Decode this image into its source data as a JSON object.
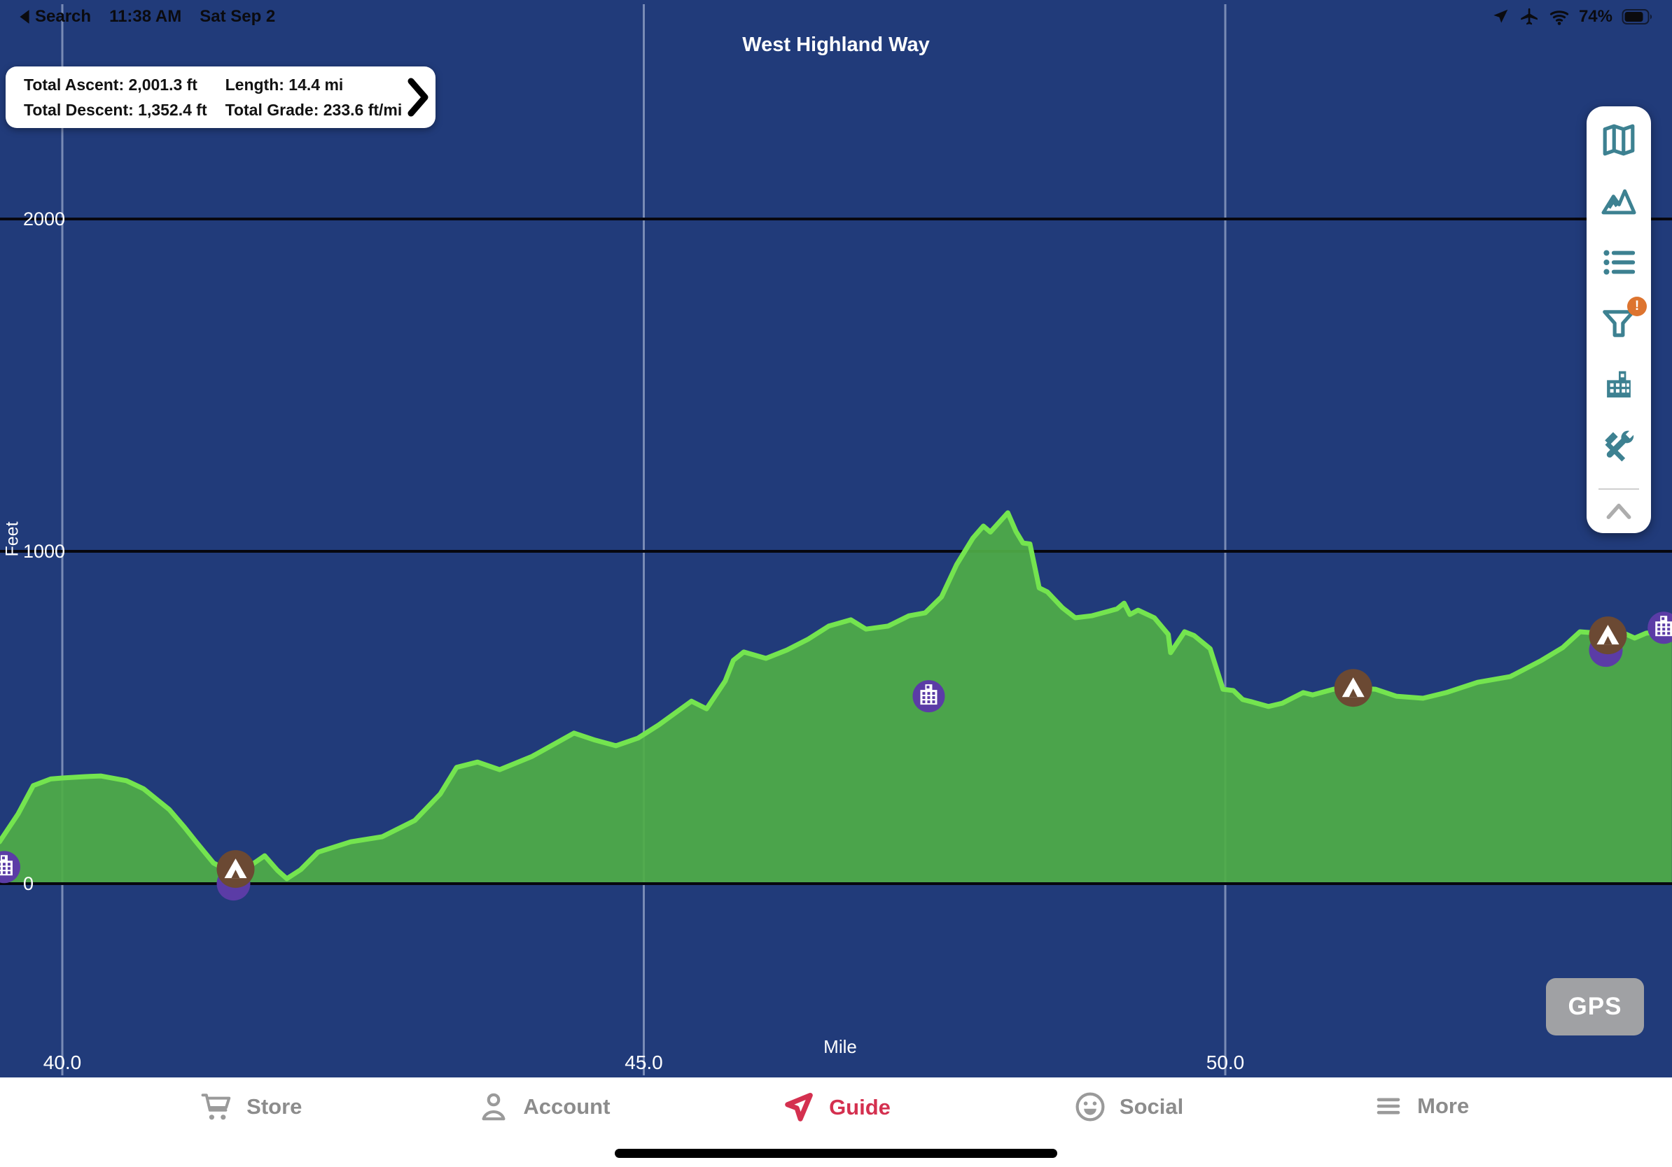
{
  "status_bar": {
    "back_label": "Search",
    "time": "11:38 AM",
    "date": "Sat Sep 2",
    "battery_percent": "74%"
  },
  "header": {
    "title": "West Highland Way"
  },
  "stats_box": {
    "total_ascent": "Total Ascent: 2,001.3 ft",
    "total_descent": "Total Descent: 1,352.4 ft",
    "length": "Length: 14.4 mi",
    "total_grade": "Total Grade: 233.6 ft/mi"
  },
  "toolbar": {
    "icons": [
      "map-icon",
      "elevation-profile-icon",
      "waypoint-list-icon",
      "filter-icon",
      "towns-icon",
      "tools-icon"
    ],
    "filter_badge": "!",
    "collapse_icon": "chevron-up-icon"
  },
  "gps_button": {
    "label": "GPS"
  },
  "tab_bar": {
    "tabs": [
      {
        "label": "Store",
        "icon": "cart-icon",
        "active": false
      },
      {
        "label": "Account",
        "icon": "person-icon",
        "active": false
      },
      {
        "label": "Guide",
        "icon": "farout-logo-icon",
        "active": true
      },
      {
        "label": "Social",
        "icon": "smiley-icon",
        "active": false
      },
      {
        "label": "More",
        "icon": "menu-icon",
        "active": false
      }
    ]
  },
  "chart_data": {
    "type": "area",
    "title": "West Highland Way",
    "xlabel": "Mile",
    "ylabel": "Feet",
    "xlim": [
      39.46,
      53.84
    ],
    "ylim_labeled": [
      0,
      2000
    ],
    "x_ticks": [
      40.0,
      45.0,
      50.0
    ],
    "x_tick_labels": [
      "40.0",
      "45.0",
      "50.0"
    ],
    "y_ticks": [
      0,
      1000,
      2000
    ],
    "y_tick_labels": [
      "0",
      "1000",
      "2000"
    ],
    "grid": true,
    "series": [
      {
        "name": "elevation_ft_vs_mile",
        "points": [
          [
            39.46,
            126
          ],
          [
            39.62,
            210
          ],
          [
            39.75,
            295
          ],
          [
            39.9,
            315
          ],
          [
            40.0,
            318
          ],
          [
            40.2,
            322
          ],
          [
            40.33,
            324
          ],
          [
            40.55,
            310
          ],
          [
            40.7,
            285
          ],
          [
            40.92,
            223
          ],
          [
            41.05,
            170
          ],
          [
            41.15,
            126
          ],
          [
            41.3,
            62
          ],
          [
            41.42,
            40
          ],
          [
            41.5,
            24
          ],
          [
            41.6,
            50
          ],
          [
            41.74,
            84
          ],
          [
            41.85,
            40
          ],
          [
            41.93,
            15
          ],
          [
            42.05,
            42
          ],
          [
            42.2,
            95
          ],
          [
            42.48,
            126
          ],
          [
            42.75,
            141
          ],
          [
            43.03,
            190
          ],
          [
            43.25,
            270
          ],
          [
            43.39,
            350
          ],
          [
            43.57,
            366
          ],
          [
            43.76,
            343
          ],
          [
            44.04,
            383
          ],
          [
            44.4,
            453
          ],
          [
            44.58,
            432
          ],
          [
            44.76,
            415
          ],
          [
            44.95,
            438
          ],
          [
            45.13,
            478
          ],
          [
            45.41,
            549
          ],
          [
            45.54,
            526
          ],
          [
            45.7,
            610
          ],
          [
            45.77,
            672
          ],
          [
            45.86,
            697
          ],
          [
            46.05,
            678
          ],
          [
            46.23,
            703
          ],
          [
            46.41,
            735
          ],
          [
            46.59,
            775
          ],
          [
            46.78,
            794
          ],
          [
            46.91,
            766
          ],
          [
            47.1,
            775
          ],
          [
            47.28,
            806
          ],
          [
            47.42,
            815
          ],
          [
            47.56,
            863
          ],
          [
            47.69,
            960
          ],
          [
            47.83,
            1040
          ],
          [
            47.92,
            1076
          ],
          [
            47.98,
            1058
          ],
          [
            48.13,
            1116
          ],
          [
            48.2,
            1060
          ],
          [
            48.26,
            1025
          ],
          [
            48.32,
            1022
          ],
          [
            48.4,
            890
          ],
          [
            48.47,
            878
          ],
          [
            48.6,
            830
          ],
          [
            48.71,
            800
          ],
          [
            48.85,
            806
          ],
          [
            49.0,
            820
          ],
          [
            49.07,
            827
          ],
          [
            49.13,
            844
          ],
          [
            49.18,
            810
          ],
          [
            49.25,
            823
          ],
          [
            49.39,
            800
          ],
          [
            49.51,
            750
          ],
          [
            49.53,
            695
          ],
          [
            49.65,
            758
          ],
          [
            49.73,
            747
          ],
          [
            49.87,
            707
          ],
          [
            49.98,
            585
          ],
          [
            50.07,
            581
          ],
          [
            50.15,
            554
          ],
          [
            50.23,
            547
          ],
          [
            50.37,
            533
          ],
          [
            50.49,
            543
          ],
          [
            50.67,
            575
          ],
          [
            50.75,
            568
          ],
          [
            50.93,
            585
          ],
          [
            51.07,
            589
          ],
          [
            51.29,
            585
          ],
          [
            51.47,
            564
          ],
          [
            51.7,
            558
          ],
          [
            51.9,
            575
          ],
          [
            52.17,
            606
          ],
          [
            52.45,
            623
          ],
          [
            52.72,
            672
          ],
          [
            52.9,
            710
          ],
          [
            53.05,
            758
          ],
          [
            53.2,
            754
          ],
          [
            53.4,
            758
          ],
          [
            53.52,
            739
          ],
          [
            53.62,
            754
          ],
          [
            53.84,
            758
          ]
        ]
      }
    ],
    "markers": [
      {
        "type": "town",
        "mile": 39.5,
        "feet": 50,
        "purple_shadow": false
      },
      {
        "type": "campsite",
        "mile": 41.49,
        "feet": 44,
        "purple_shadow": true
      },
      {
        "type": "town",
        "mile": 47.45,
        "feet": 564,
        "purple_shadow": false
      },
      {
        "type": "campsite",
        "mile": 51.1,
        "feet": 589,
        "purple_shadow": false
      },
      {
        "type": "campsite",
        "mile": 53.29,
        "feet": 747,
        "purple_shadow": true
      },
      {
        "type": "town",
        "mile": 53.77,
        "feet": 770,
        "purple_shadow": false
      }
    ],
    "colors": {
      "background": "#213B7A",
      "area_fill": "#4FAE47",
      "area_line": "#74E44F",
      "grid_major": "#07070E",
      "grid_vertical": "rgba(210,220,240,0.5)",
      "campsite": "#6B4933",
      "town": "#5B3CA6",
      "toolbar_teal": "#3D8191",
      "badge_orange": "#DD742F",
      "active_red": "#D4304F",
      "tab_gray": "#9A9A9A"
    },
    "legend": null
  }
}
